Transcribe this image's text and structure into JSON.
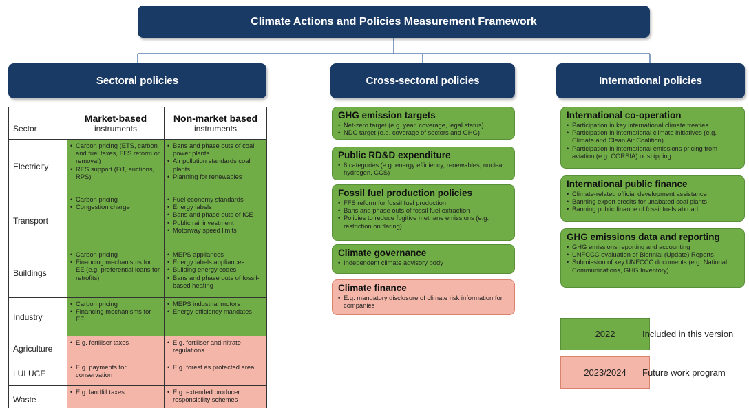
{
  "title": "Climate Actions and Policies Measurement Framework",
  "columns": [
    "Sectoral policies",
    "Cross-sectoral policies",
    "International policies"
  ],
  "table": {
    "header": {
      "sector": "Sector",
      "market": {
        "title": "Market-based",
        "subtitle": "instruments"
      },
      "nonmarket": {
        "title": "Non-market based",
        "subtitle": "instruments"
      }
    },
    "rows": [
      {
        "sector": "Electricity",
        "color": "#70ad47",
        "market": [
          "Carbon pricing (ETS, carbon and fuel taxes, FFS reform or removal)",
          "RES support (FiT, auctions, RPS)"
        ],
        "nonmarket": [
          "Bans and phase outs of coal power plants",
          "Air pollution standards coal plants",
          "Planning for renewables"
        ]
      },
      {
        "sector": "Transport",
        "color": "#70ad47",
        "market": [
          "Carbon pricing",
          "Congestion charge"
        ],
        "nonmarket": [
          "Fuel economy standards",
          "Energy labels",
          "Bans and phase outs of ICE",
          "Public rail investment",
          "Motorway speed limits"
        ]
      },
      {
        "sector": "Buildings",
        "color": "#70ad47",
        "market": [
          "Carbon pricing",
          "Financing mechanisms for EE (e.g. preferential loans for retrofits)"
        ],
        "nonmarket": [
          "MEPS appliances",
          "Energy labels appliances",
          "Building energy codes",
          "Bans and phase outs of fossil-based heating"
        ]
      },
      {
        "sector": "Industry",
        "color": "#70ad47",
        "market": [
          "Carbon pricing",
          "Financing mechanisms for EE"
        ],
        "nonmarket": [
          "MEPS industrial motors",
          "Energy efficiency mandates"
        ]
      },
      {
        "sector": "Agriculture",
        "color": "#f4b6a8",
        "market": [
          "E.g. fertiliser taxes"
        ],
        "nonmarket": [
          "E.g. fertiliser and nitrate regulations"
        ]
      },
      {
        "sector": "LULUCF",
        "color": "#f4b6a8",
        "market": [
          "E.g. payments for conservation"
        ],
        "nonmarket": [
          "E.g. forest as protected area"
        ]
      },
      {
        "sector": "Waste",
        "color": "#f4b6a8",
        "market": [
          "E.g. landfill taxes"
        ],
        "nonmarket": [
          "E.g. extended producer responsibility schemes"
        ]
      }
    ]
  },
  "cross_sectoral": [
    {
      "title": "GHG emission targets",
      "color": "#70ad47",
      "items": [
        "Net-zero target (e.g. year, coverage, legal status)",
        "NDC target (e.g. coverage of sectors and GHG)"
      ]
    },
    {
      "title": "Public RD&D expenditure",
      "color": "#70ad47",
      "items": [
        "6 categories (e.g. energy efficiency, renewables, nuclear, hydrogen, CCS)"
      ]
    },
    {
      "title": "Fossil fuel production policies",
      "color": "#70ad47",
      "items": [
        "FFS reform for fossil fuel production",
        "Bans and phase outs of fossil fuel extraction",
        "Policies to reduce fugitive methane emissions (e.g. restriction on flaring)"
      ]
    },
    {
      "title": "Climate governance",
      "color": "#70ad47",
      "items": [
        "Independent climate advisory body"
      ]
    },
    {
      "title": "Climate finance",
      "color": "#f4b6a8",
      "items": [
        "E.g. mandatory disclosure of climate risk information for companies"
      ]
    }
  ],
  "international": [
    {
      "title": "International co-operation",
      "color": "#70ad47",
      "items": [
        "Participation in key international climate treaties",
        "Participation in international climate initiatives (e.g. Climate and Clean Air Coalition)",
        "Participation in international emissions pricing from aviation (e.g. CORSIA) or shipping"
      ]
    },
    {
      "title": "International public finance",
      "color": "#70ad47",
      "items": [
        "Climate-related official development assistance",
        "Banning export credits for unabated coal plants",
        "Banning public finance of fossil fuels abroad"
      ]
    },
    {
      "title": "GHG emissions data and reporting",
      "color": "#70ad47",
      "items": [
        "GHG emissions reporting and accounting",
        "UNFCCC evaluation of Biennial (Update) Reports",
        "Submission of key UNFCCC documents (e.g. National Communications, GHG Inventory)"
      ]
    }
  ],
  "legend": [
    {
      "label": "2022",
      "text": "Included in this version",
      "color": "#70ad47"
    },
    {
      "label": "2023/2024",
      "text": "Future work program",
      "color": "#f4b6a8"
    }
  ]
}
